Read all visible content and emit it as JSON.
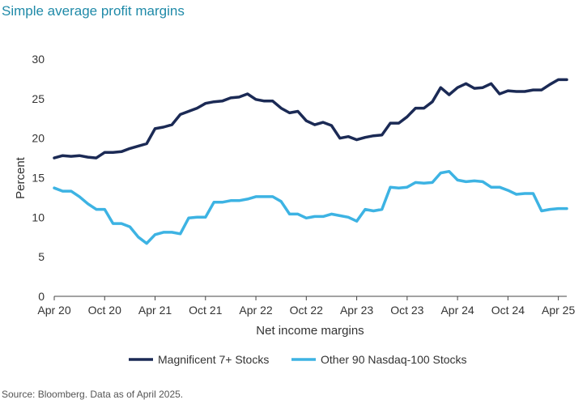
{
  "title": "Simple average profit margins",
  "source": "Source: Bloomberg. Data as of April 2025.",
  "chart_data": {
    "type": "line",
    "title": "Simple average profit margins",
    "xlabel": "Net income margins",
    "ylabel": "Percent",
    "ylim": [
      0,
      30
    ],
    "yticks": [
      "0",
      "5",
      "10",
      "15",
      "20",
      "25",
      "30"
    ],
    "xticks": [
      "Apr 20",
      "Oct 20",
      "Apr 21",
      "Oct 21",
      "Apr 22",
      "Oct 22",
      "Apr 23",
      "Oct 23",
      "Apr 24",
      "Oct 24",
      "Apr 25"
    ],
    "x_range_months": [
      0,
      61
    ],
    "grid": false,
    "legend_position": "bottom-center",
    "series": [
      {
        "name": "Magnificent 7+ Stocks",
        "color": "#1b2a55",
        "x": [
          0,
          1,
          2,
          3,
          4,
          5,
          6,
          7,
          8,
          9,
          10,
          11,
          12,
          13,
          14,
          15,
          16,
          17,
          18,
          19,
          20,
          21,
          22,
          23,
          24,
          25,
          26,
          27,
          28,
          29,
          30,
          31,
          32,
          33,
          34,
          35,
          36,
          37,
          38,
          39,
          40,
          41,
          42,
          43,
          44,
          45,
          46,
          47,
          48,
          49,
          50,
          51,
          52,
          53,
          54,
          55,
          56,
          57,
          58,
          59,
          60,
          61
        ],
        "values": [
          17.5,
          17.8,
          17.7,
          17.8,
          17.6,
          17.5,
          18.2,
          18.2,
          18.3,
          18.7,
          19.0,
          19.3,
          21.2,
          21.4,
          21.7,
          23.0,
          23.4,
          23.8,
          24.4,
          24.6,
          24.7,
          25.1,
          25.2,
          25.6,
          24.9,
          24.7,
          24.7,
          23.8,
          23.2,
          23.4,
          22.2,
          21.7,
          22.0,
          21.6,
          20.0,
          20.2,
          19.8,
          20.1,
          20.3,
          20.4,
          21.9,
          21.9,
          22.7,
          23.8,
          23.8,
          24.6,
          26.4,
          25.5,
          26.4,
          26.9,
          26.3,
          26.4,
          26.9,
          25.6,
          26.0,
          25.9,
          25.9,
          26.1,
          26.1,
          26.8,
          27.4,
          27.4
        ]
      },
      {
        "name": "Other 90 Nasdaq-100 Stocks",
        "color": "#3db3e3",
        "x": [
          0,
          1,
          2,
          3,
          4,
          5,
          6,
          7,
          8,
          9,
          10,
          11,
          12,
          13,
          14,
          15,
          16,
          17,
          18,
          19,
          20,
          21,
          22,
          23,
          24,
          25,
          26,
          27,
          28,
          29,
          30,
          31,
          32,
          33,
          34,
          35,
          36,
          37,
          38,
          39,
          40,
          41,
          42,
          43,
          44,
          45,
          46,
          47,
          48,
          49,
          50,
          51,
          52,
          53,
          54,
          55,
          56,
          57,
          58,
          59,
          60,
          61
        ],
        "values": [
          13.7,
          13.3,
          13.3,
          12.6,
          11.7,
          11.0,
          11.0,
          9.2,
          9.2,
          8.8,
          7.5,
          6.7,
          7.8,
          8.1,
          8.1,
          7.9,
          9.9,
          10.0,
          10.0,
          11.9,
          11.9,
          12.1,
          12.1,
          12.3,
          12.6,
          12.6,
          12.6,
          12.0,
          10.4,
          10.4,
          9.9,
          10.1,
          10.1,
          10.4,
          10.2,
          10.0,
          9.5,
          11.0,
          10.8,
          11.0,
          13.8,
          13.7,
          13.8,
          14.4,
          14.3,
          14.4,
          15.6,
          15.8,
          14.7,
          14.5,
          14.6,
          14.5,
          13.8,
          13.8,
          13.4,
          12.9,
          13.0,
          13.0,
          10.8,
          11.0,
          11.1,
          11.1
        ]
      }
    ]
  }
}
